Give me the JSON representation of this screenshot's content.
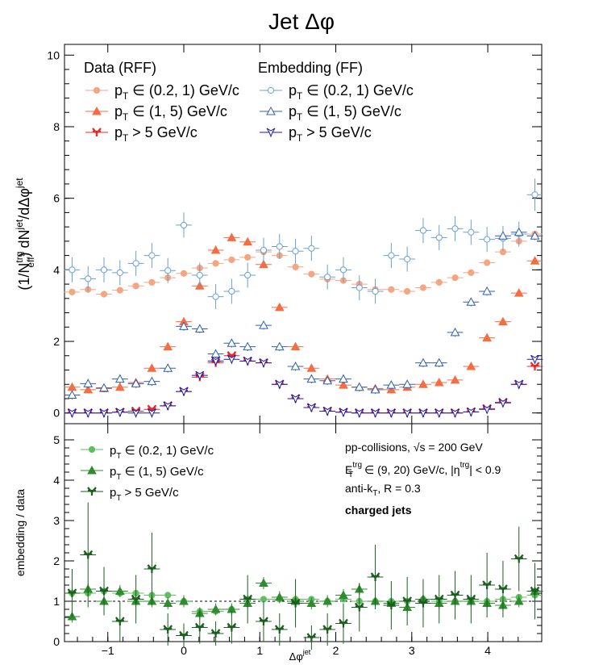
{
  "title_main": "Jet ",
  "title_symbol": "Δφ",
  "chart_data": [
    {
      "type": "scatter",
      "name": "top-panel",
      "xlim": [
        -1.57,
        4.71
      ],
      "ylim": [
        -0.3,
        10.3
      ],
      "yticks": [
        0,
        2,
        4,
        6,
        8,
        10
      ],
      "ylabel_parts": [
        "(1/N",
        "trg",
        "eff",
        ") dN",
        "jet",
        "/dΔφ",
        "jet"
      ],
      "legend_left_header": "Data (RFF)",
      "legend_right_header": "Embedding (FF)",
      "x": [
        -1.47,
        -1.26,
        -1.05,
        -0.84,
        -0.63,
        -0.42,
        -0.21,
        0.0,
        0.21,
        0.42,
        0.63,
        0.84,
        1.05,
        1.26,
        1.47,
        1.68,
        1.89,
        2.1,
        2.31,
        2.52,
        2.73,
        2.94,
        3.15,
        3.36,
        3.57,
        3.78,
        3.99,
        4.2,
        4.41,
        4.62
      ],
      "series": [
        {
          "key": "data_low",
          "label": "(0.2, 1) GeV/c",
          "label_prefix": "p",
          "label_sub": "T",
          "label_op": " ∈ ",
          "color": "#f4a582",
          "marker": "circle",
          "filled": true,
          "values": [
            3.38,
            3.45,
            3.32,
            3.43,
            3.55,
            3.65,
            3.78,
            3.9,
            4.05,
            4.18,
            4.28,
            4.35,
            4.5,
            4.4,
            4.08,
            3.88,
            3.74,
            3.7,
            3.6,
            3.45,
            3.45,
            3.4,
            3.5,
            3.65,
            3.78,
            3.92,
            4.2,
            4.5,
            4.8,
            5.0
          ],
          "err": [
            0.05,
            0.05,
            0.05,
            0.05,
            0.05,
            0.05,
            0.05,
            0.05,
            0.05,
            0.05,
            0.05,
            0.05,
            0.05,
            0.05,
            0.05,
            0.05,
            0.05,
            0.05,
            0.05,
            0.05,
            0.05,
            0.05,
            0.05,
            0.05,
            0.05,
            0.05,
            0.05,
            0.05,
            0.05,
            0.05
          ]
        },
        {
          "key": "data_mid",
          "label": "(1, 5) GeV/c",
          "label_prefix": "p",
          "label_sub": "T",
          "label_op": " ∈ ",
          "color": "#f46d43",
          "marker": "triangle",
          "filled": true,
          "values": [
            0.72,
            0.65,
            0.68,
            0.72,
            0.85,
            1.25,
            1.85,
            2.55,
            3.55,
            4.55,
            4.9,
            4.78,
            4.15,
            2.95,
            1.85,
            1.25,
            0.95,
            0.78,
            0.72,
            0.68,
            0.65,
            0.72,
            0.8,
            0.85,
            0.92,
            1.3,
            2.1,
            2.55,
            3.35,
            4.25
          ],
          "err": [
            0.04,
            0.04,
            0.04,
            0.04,
            0.04,
            0.04,
            0.04,
            0.04,
            0.04,
            0.04,
            0.04,
            0.04,
            0.04,
            0.04,
            0.04,
            0.04,
            0.04,
            0.04,
            0.04,
            0.04,
            0.04,
            0.04,
            0.04,
            0.04,
            0.04,
            0.04,
            0.04,
            0.04,
            0.04,
            0.04
          ]
        },
        {
          "key": "data_high",
          "label": " > 5 GeV/c",
          "label_prefix": "p",
          "label_sub": "T",
          "label_op": "",
          "color": "#e8282b",
          "marker": "star",
          "filled": true,
          "values": [
            0.0,
            0.0,
            0.0,
            0.02,
            0.05,
            0.1,
            0.2,
            0.6,
            1.0,
            1.4,
            1.6,
            1.45,
            1.4,
            0.8,
            0.4,
            0.15,
            0.05,
            0.02,
            0.0,
            0.0,
            0.0,
            0.0,
            0.0,
            0.0,
            0.0,
            0.03,
            0.12,
            0.3,
            0.8,
            1.3
          ],
          "err": [
            0.02,
            0.02,
            0.02,
            0.02,
            0.02,
            0.02,
            0.02,
            0.02,
            0.02,
            0.02,
            0.02,
            0.02,
            0.02,
            0.02,
            0.02,
            0.02,
            0.02,
            0.02,
            0.02,
            0.02,
            0.02,
            0.02,
            0.02,
            0.02,
            0.02,
            0.02,
            0.02,
            0.02,
            0.02,
            0.02
          ]
        },
        {
          "key": "emb_low",
          "label": "(0.2, 1) GeV/c",
          "label_prefix": "p",
          "label_sub": "T",
          "label_op": " ∈ ",
          "color": "#6a9fd4",
          "marker": "circle",
          "filled": false,
          "values": [
            4.0,
            3.75,
            4.0,
            3.92,
            4.18,
            4.4,
            3.98,
            5.25,
            3.85,
            3.25,
            3.4,
            3.85,
            4.55,
            4.65,
            4.52,
            4.6,
            3.8,
            4.0,
            3.5,
            3.4,
            4.4,
            4.3,
            5.1,
            4.9,
            5.15,
            5.05,
            4.85,
            4.88,
            5.0,
            6.1
          ],
          "err": [
            0.35,
            0.35,
            0.35,
            0.35,
            0.35,
            0.35,
            0.35,
            0.35,
            0.35,
            0.35,
            0.35,
            0.35,
            0.35,
            0.35,
            0.35,
            0.35,
            0.35,
            0.35,
            0.35,
            0.35,
            0.35,
            0.35,
            0.35,
            0.35,
            0.35,
            0.35,
            0.35,
            0.35,
            0.35,
            0.45
          ]
        },
        {
          "key": "emb_mid",
          "label": "(1, 5) GeV/c",
          "label_prefix": "p",
          "label_sub": "T",
          "label_op": " ∈ ",
          "color": "#2f5fb5",
          "marker": "triangle",
          "filled": false,
          "values": [
            0.5,
            0.82,
            0.7,
            0.95,
            0.82,
            0.88,
            1.25,
            2.42,
            2.35,
            1.65,
            1.95,
            1.85,
            2.45,
            1.85,
            1.3,
            0.95,
            0.9,
            0.95,
            0.72,
            0.65,
            0.78,
            0.8,
            1.4,
            1.4,
            2.25,
            3.1,
            3.4,
            4.95,
            5.05,
            4.95
          ],
          "err": [
            0.12,
            0.12,
            0.12,
            0.12,
            0.12,
            0.12,
            0.12,
            0.12,
            0.12,
            0.12,
            0.12,
            0.12,
            0.12,
            0.12,
            0.12,
            0.12,
            0.12,
            0.12,
            0.12,
            0.12,
            0.12,
            0.12,
            0.12,
            0.12,
            0.12,
            0.12,
            0.12,
            0.12,
            0.12,
            0.12
          ]
        },
        {
          "key": "emb_high",
          "label": " > 5 GeV/c",
          "label_prefix": "p",
          "label_sub": "T",
          "label_op": "",
          "color": "#1a1aa8",
          "marker": "star_open",
          "filled": false,
          "values": [
            0.0,
            0.0,
            0.0,
            0.02,
            0.0,
            0.0,
            0.2,
            0.6,
            1.05,
            1.45,
            1.5,
            1.45,
            1.4,
            0.8,
            0.4,
            0.15,
            0.05,
            0.02,
            0.0,
            0.0,
            0.0,
            0.0,
            0.0,
            0.0,
            0.0,
            0.03,
            0.1,
            0.28,
            0.8,
            1.5
          ],
          "err": [
            0.03,
            0.03,
            0.03,
            0.03,
            0.03,
            0.03,
            0.03,
            0.03,
            0.03,
            0.03,
            0.03,
            0.03,
            0.03,
            0.03,
            0.03,
            0.03,
            0.03,
            0.03,
            0.03,
            0.03,
            0.03,
            0.03,
            0.03,
            0.03,
            0.03,
            0.03,
            0.03,
            0.03,
            0.03,
            0.03
          ]
        }
      ]
    },
    {
      "type": "scatter",
      "name": "ratio-panel",
      "xlim": [
        -1.57,
        4.71
      ],
      "ylim": [
        0,
        5.4
      ],
      "yticks": [
        0,
        1,
        2,
        3,
        4,
        5
      ],
      "xticks": [
        -1,
        0,
        1,
        2,
        3,
        4
      ],
      "reference_line": 1,
      "xlabel_base": "Δφ",
      "xlabel_sup": "jet",
      "ylabel": "embedding / data",
      "series": [
        {
          "key": "ratio_low",
          "label": "(0.2, 1) GeV/c",
          "label_prefix": "p",
          "label_sub": "T",
          "label_op": " ∈ ",
          "color": "#5fbf5f",
          "marker": "circle",
          "values": [
            1.2,
            1.2,
            1.25,
            1.2,
            1.2,
            1.15,
            1.15,
            1.0,
            0.75,
            0.75,
            0.8,
            1.05,
            1.05,
            1.05,
            1.05,
            1.05,
            1.0,
            1.05,
            1.0,
            1.0,
            1.0,
            1.0,
            1.05,
            1.0,
            1.0,
            1.0,
            1.0,
            1.05,
            1.1,
            1.15
          ],
          "err": [
            0.08,
            0.08,
            0.08,
            0.08,
            0.08,
            0.08,
            0.08,
            0.08,
            0.08,
            0.08,
            0.08,
            0.08,
            0.08,
            0.08,
            0.08,
            0.08,
            0.08,
            0.08,
            0.08,
            0.08,
            0.08,
            0.08,
            0.08,
            0.08,
            0.08,
            0.08,
            0.08,
            0.08,
            0.08,
            0.08
          ]
        },
        {
          "key": "ratio_mid",
          "label": "(1, 5) GeV/c",
          "label_prefix": "p",
          "label_sub": "T",
          "label_op": " ∈ ",
          "color": "#2e8b2e",
          "marker": "triangle",
          "values": [
            0.62,
            1.3,
            1.0,
            1.25,
            1.0,
            1.0,
            0.95,
            1.0,
            0.7,
            0.8,
            0.8,
            0.95,
            1.45,
            1.1,
            1.0,
            0.95,
            1.0,
            1.15,
            1.3,
            1.0,
            0.95,
            0.85,
            1.05,
            0.95,
            1.0,
            1.0,
            0.95,
            0.9,
            1.0,
            1.25
          ],
          "err": [
            0.15,
            0.15,
            0.15,
            0.15,
            0.15,
            0.15,
            0.15,
            0.15,
            0.15,
            0.15,
            0.15,
            0.15,
            0.15,
            0.15,
            0.15,
            0.15,
            0.15,
            0.15,
            0.15,
            0.15,
            0.15,
            0.15,
            0.15,
            0.15,
            0.15,
            0.15,
            0.15,
            0.15,
            0.15,
            0.15
          ]
        },
        {
          "key": "ratio_high",
          "label": " > 5 GeV/c",
          "label_prefix": "p",
          "label_sub": "T",
          "label_op": "",
          "color": "#1b5e20",
          "marker": "star",
          "values": [
            1.2,
            2.15,
            1.25,
            0.5,
            1.05,
            1.8,
            0.3,
            0.15,
            0.35,
            0.2,
            0.35,
            1.05,
            0.5,
            0.3,
            0.95,
            0.1,
            0.3,
            0.45,
            0.85,
            1.6,
            0.9,
            1.0,
            0.95,
            1.05,
            1.15,
            1.05,
            1.4,
            1.3,
            2.05,
            1.25
          ],
          "err": [
            0.6,
            1.3,
            0.6,
            0.5,
            0.6,
            0.9,
            0.4,
            0.3,
            0.4,
            0.3,
            0.4,
            0.6,
            0.5,
            0.4,
            0.6,
            0.3,
            0.4,
            0.5,
            0.6,
            0.8,
            0.6,
            0.6,
            0.6,
            0.6,
            0.6,
            0.6,
            0.8,
            0.7,
            0.8,
            0.7
          ]
        }
      ]
    }
  ],
  "info_box": {
    "line1": "pp-collisions, √s = 200 GeV",
    "line2_a": "E",
    "line2_sup": "trg",
    "line2_sub": "T",
    "line2_b": " ∈ (9, 20) GeV/c, |η",
    "line2_sup2": "trg",
    "line2_c": "| < 0.9",
    "line3": "anti-k",
    "line3_sub": "T",
    "line3_b": ", R = 0.3",
    "line4": "charged jets"
  }
}
